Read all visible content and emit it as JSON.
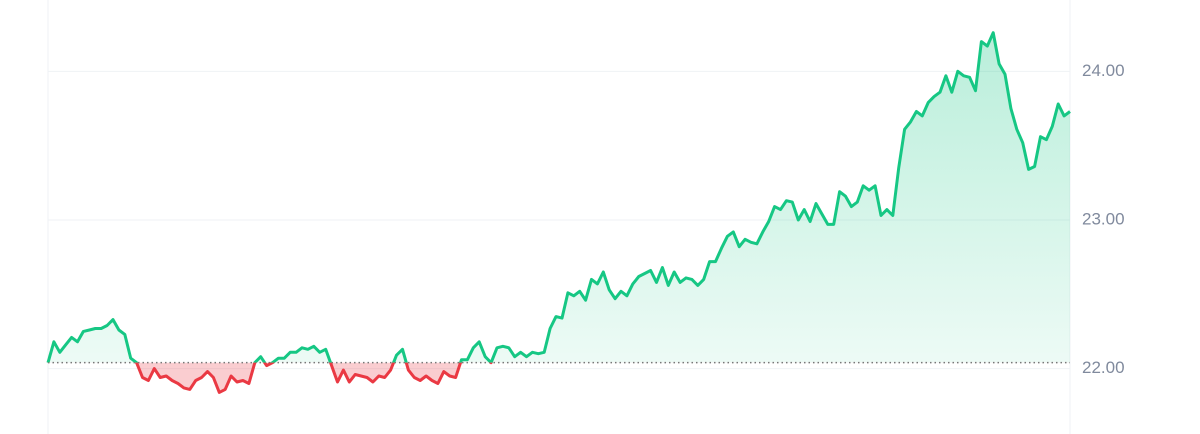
{
  "chart_data": {
    "type": "line",
    "values": [
      22.04,
      22.18,
      22.11,
      22.16,
      22.21,
      22.18,
      22.25,
      22.26,
      22.27,
      22.27,
      22.29,
      22.33,
      22.26,
      22.23,
      22.07,
      22.04,
      21.94,
      21.92,
      22.0,
      21.94,
      21.95,
      21.92,
      21.9,
      21.87,
      21.86,
      21.92,
      21.94,
      21.98,
      21.94,
      21.84,
      21.86,
      21.95,
      21.91,
      21.92,
      21.9,
      22.04,
      22.08,
      22.02,
      22.04,
      22.07,
      22.07,
      22.11,
      22.11,
      22.14,
      22.13,
      22.15,
      22.11,
      22.13,
      22.02,
      21.91,
      21.99,
      21.91,
      21.96,
      21.95,
      21.94,
      21.91,
      21.95,
      21.94,
      21.99,
      22.09,
      22.13,
      21.99,
      21.94,
      21.92,
      21.95,
      21.92,
      21.9,
      21.98,
      21.95,
      21.94,
      22.06,
      22.06,
      22.14,
      22.18,
      22.08,
      22.04,
      22.14,
      22.15,
      22.14,
      22.08,
      22.11,
      22.08,
      22.11,
      22.1,
      22.11,
      22.27,
      22.35,
      22.34,
      22.51,
      22.49,
      22.52,
      22.46,
      22.6,
      22.57,
      22.65,
      22.53,
      22.47,
      22.52,
      22.49,
      22.57,
      22.62,
      22.64,
      22.66,
      22.58,
      22.68,
      22.56,
      22.65,
      22.58,
      22.61,
      22.6,
      22.56,
      22.6,
      22.72,
      22.72,
      22.81,
      22.89,
      22.92,
      22.82,
      22.87,
      22.85,
      22.84,
      22.92,
      22.99,
      23.09,
      23.07,
      23.13,
      23.12,
      23.0,
      23.07,
      22.99,
      23.11,
      23.04,
      22.97,
      22.97,
      23.19,
      23.16,
      23.09,
      23.12,
      23.23,
      23.2,
      23.23,
      23.03,
      23.07,
      23.03,
      23.35,
      23.61,
      23.66,
      23.73,
      23.7,
      23.79,
      23.83,
      23.86,
      23.97,
      23.86,
      24.0,
      23.97,
      23.96,
      23.87,
      24.2,
      24.17,
      24.26,
      24.05,
      23.98,
      23.75,
      23.61,
      23.52,
      23.34,
      23.36,
      23.56,
      23.54,
      23.63,
      23.78,
      23.7,
      23.73
    ],
    "baseline": 22.04,
    "up_color": "#16c784",
    "down_color": "#ea3943",
    "ylim": [
      21.56,
      24.48
    ],
    "yticks": [
      {
        "value": 22,
        "label": "22.00"
      },
      {
        "value": 23,
        "label": "23.00"
      },
      {
        "value": 24,
        "label": "24.00"
      }
    ],
    "grid": true
  }
}
